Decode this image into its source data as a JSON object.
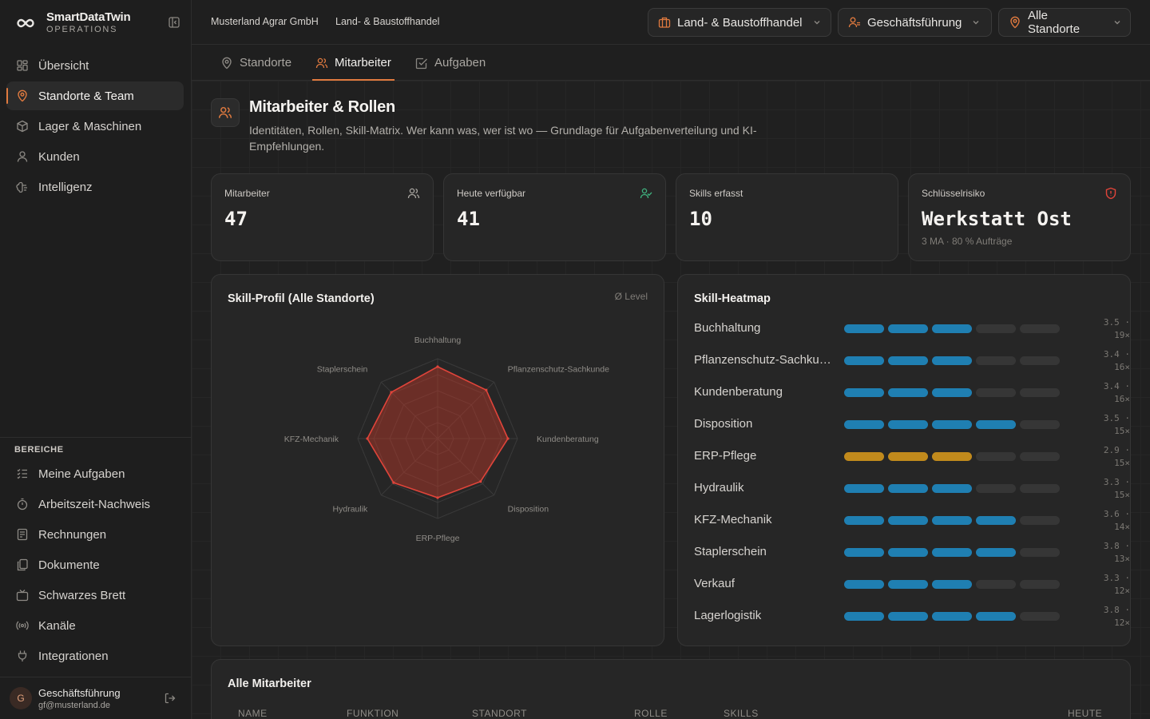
{
  "brand": {
    "name": "SmartDataTwin",
    "sub": "OPERATIONS"
  },
  "sidebar": {
    "primary": [
      {
        "label": "Übersicht",
        "icon": "dashboard-grid-icon"
      },
      {
        "label": "Standorte & Team",
        "icon": "map-pin-icon",
        "active": true
      },
      {
        "label": "Lager & Maschinen",
        "icon": "box-icon"
      },
      {
        "label": "Kunden",
        "icon": "user-icon"
      },
      {
        "label": "Intelligenz",
        "icon": "brain-icon"
      }
    ],
    "section_label": "BEREICHE",
    "secondary": [
      {
        "label": "Meine Aufgaben",
        "icon": "checklist-icon"
      },
      {
        "label": "Arbeitszeit-Nachweis",
        "icon": "stopwatch-icon"
      },
      {
        "label": "Rechnungen",
        "icon": "receipt-icon"
      },
      {
        "label": "Dokumente",
        "icon": "documents-icon"
      },
      {
        "label": "Schwarzes Brett",
        "icon": "tv-board-icon"
      },
      {
        "label": "Kanäle",
        "icon": "broadcast-icon"
      },
      {
        "label": "Integrationen",
        "icon": "plug-icon"
      }
    ],
    "user": {
      "initial": "G",
      "name": "Geschäftsführung",
      "email": "gf@musterland.de"
    }
  },
  "topbar": {
    "company": "Musterland Agrar GmbH",
    "division": "Land- & Baustoffhandel",
    "selectors": [
      {
        "label": "Land- & Baustoffhandel",
        "icon": "briefcase-icon"
      },
      {
        "label": "Geschäftsführung",
        "icon": "user-role-icon"
      },
      {
        "label": "Alle Standorte",
        "icon": "map-pin-icon"
      }
    ]
  },
  "tabs": [
    {
      "label": "Standorte",
      "icon": "map-pin-icon"
    },
    {
      "label": "Mitarbeiter",
      "icon": "users-icon",
      "active": true
    },
    {
      "label": "Aufgaben",
      "icon": "checkbox-icon"
    }
  ],
  "page": {
    "title": "Mitarbeiter & Rollen",
    "description": "Identitäten, Rollen, Skill-Matrix. Wer kann was, wer ist wo — Grundlage für Aufgabenverteilung und KI-Empfehlungen."
  },
  "kpis": [
    {
      "label": "Mitarbeiter",
      "value": "47",
      "icon": "users-icon"
    },
    {
      "label": "Heute verfügbar",
      "value": "41",
      "icon": "user-check-icon"
    },
    {
      "label": "Skills erfasst",
      "value": "10"
    },
    {
      "label": "Schlüsselrisiko",
      "value": "Werkstatt Ost",
      "sub": "3 MA · 80 % Aufträge",
      "icon": "shield-alert-icon"
    }
  ],
  "radar": {
    "title": "Skill-Profil (Alle Standorte)",
    "hint": "Ø Level",
    "max": 5,
    "color": "#c0392b"
  },
  "chart_data": {
    "type": "radar",
    "title": "Skill-Profil (Alle Standorte)",
    "categories": [
      "Buchhaltung",
      "Pflanzenschutz-Sachkunde",
      "Kundenberatung",
      "Disposition",
      "ERP-Pflege",
      "Hydraulik",
      "KFZ-Mechanik",
      "Staplerschein"
    ],
    "values": [
      4.5,
      4.3,
      4.4,
      3.8,
      3.7,
      3.9,
      4.4,
      4.1
    ],
    "rmax": 5
  },
  "heatmap": {
    "title": "Skill-Heatmap",
    "colors": {
      "normal": "#1f7fb2",
      "warn": "#c18a1c",
      "empty": "#363636"
    },
    "rows": [
      {
        "name": "Buchhaltung",
        "level": 3,
        "avg": "3.5 ·",
        "count": "19×",
        "warn": false
      },
      {
        "name": "Pflanzenschutz-Sachkunde",
        "level": 3,
        "avg": "3.4 ·",
        "count": "16×",
        "warn": false
      },
      {
        "name": "Kundenberatung",
        "level": 3,
        "avg": "3.4 ·",
        "count": "16×",
        "warn": false
      },
      {
        "name": "Disposition",
        "level": 4,
        "avg": "3.5 ·",
        "count": "15×",
        "warn": false
      },
      {
        "name": "ERP-Pflege",
        "level": 3,
        "avg": "2.9 ·",
        "count": "15×",
        "warn": true
      },
      {
        "name": "Hydraulik",
        "level": 3,
        "avg": "3.3 ·",
        "count": "15×",
        "warn": false
      },
      {
        "name": "KFZ-Mechanik",
        "level": 4,
        "avg": "3.6 ·",
        "count": "14×",
        "warn": false
      },
      {
        "name": "Staplerschein",
        "level": 4,
        "avg": "3.8 ·",
        "count": "13×",
        "warn": false
      },
      {
        "name": "Verkauf",
        "level": 3,
        "avg": "3.3 ·",
        "count": "12×",
        "warn": false
      },
      {
        "name": "Lagerlogistik",
        "level": 4,
        "avg": "3.8 ·",
        "count": "12×",
        "warn": false
      }
    ]
  },
  "table": {
    "title": "Alle Mitarbeiter",
    "columns": [
      "NAME",
      "FUNKTION",
      "STANDORT",
      "ROLLE",
      "SKILLS",
      "HEUTE"
    ]
  }
}
